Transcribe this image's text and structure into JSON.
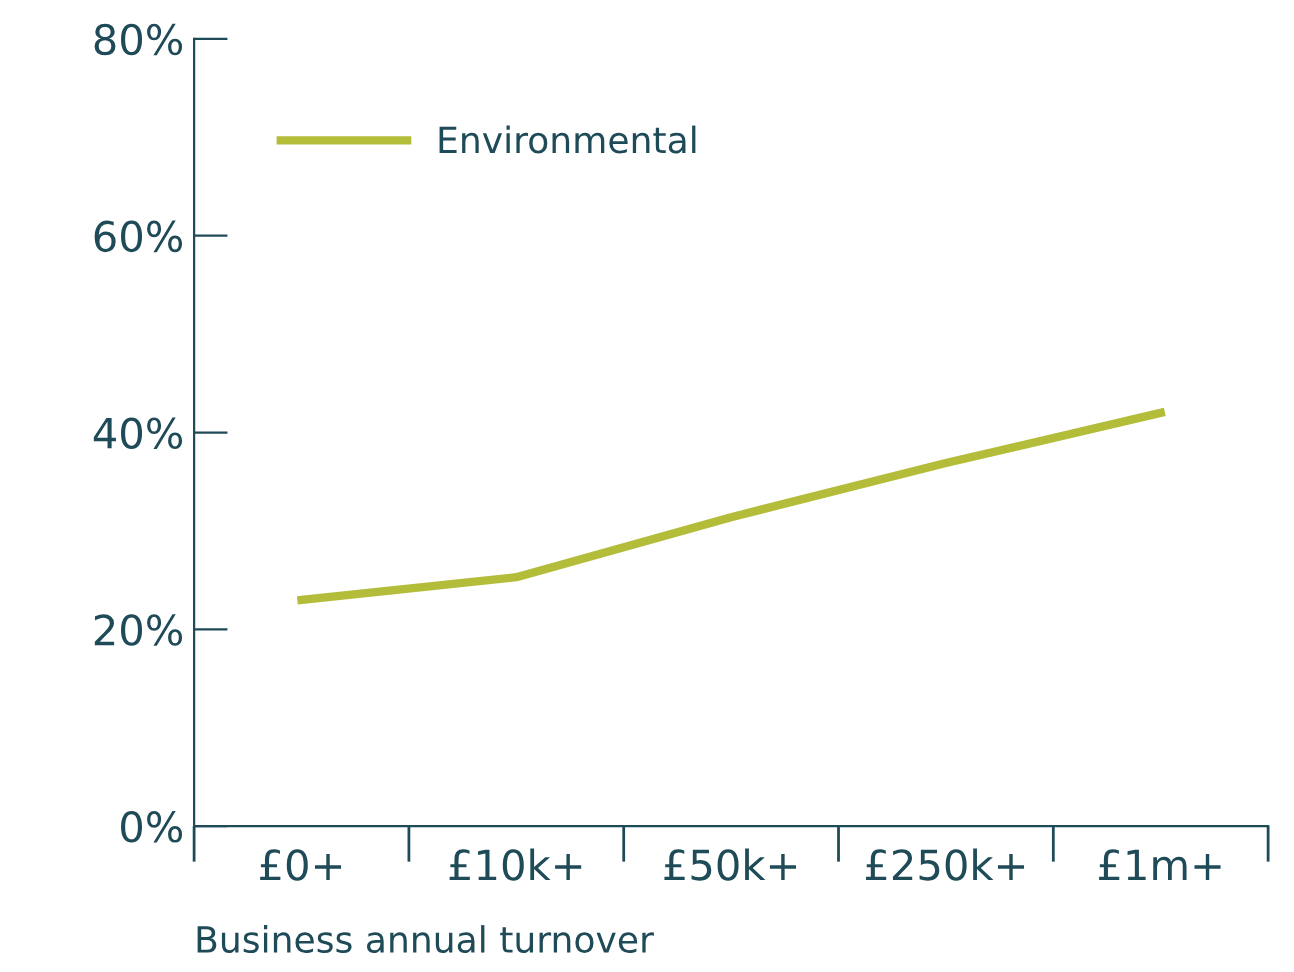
{
  "chart_data": {
    "type": "line",
    "xlabel": "Business annual turnover",
    "categories": [
      "£0+",
      "£10k+",
      "£50k+",
      "£250k+",
      "£1m+"
    ],
    "series": [
      {
        "name": "Environmental",
        "color": "#b3bd3a",
        "values": [
          23,
          25.3,
          31.4,
          36.9,
          42
        ]
      }
    ],
    "ylim": [
      0,
      80
    ],
    "yticks": [
      {
        "value": 0,
        "label": "0%"
      },
      {
        "value": 20,
        "label": "20%"
      },
      {
        "value": 40,
        "label": "40%"
      },
      {
        "value": 60,
        "label": "60%"
      },
      {
        "value": 80,
        "label": "80%"
      }
    ],
    "grid": false,
    "legend": "top left",
    "marker": "none",
    "line_style": "solid"
  }
}
